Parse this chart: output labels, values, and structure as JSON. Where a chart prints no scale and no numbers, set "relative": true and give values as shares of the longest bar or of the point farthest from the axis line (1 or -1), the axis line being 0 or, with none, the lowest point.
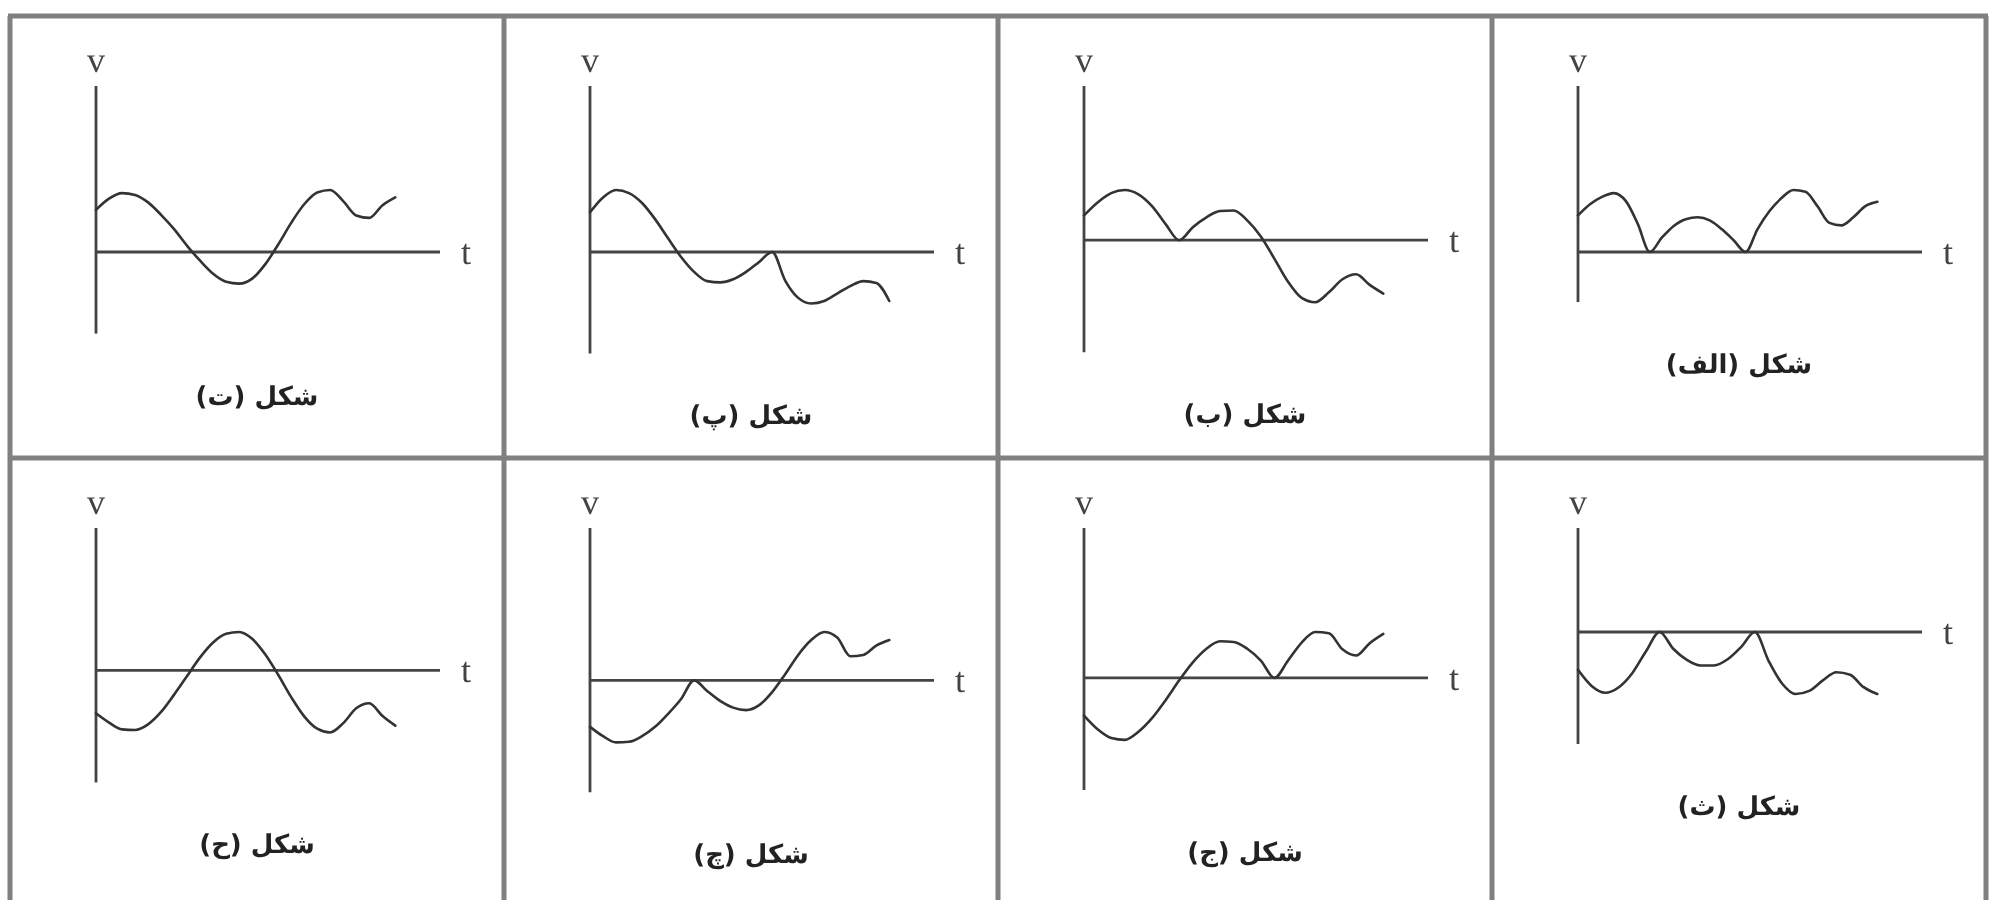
{
  "chart_data": [
    {
      "type": "line",
      "title": "شکل (الف)",
      "xlabel": "t",
      "ylabel": "v",
      "relative": true,
      "color": "#333333",
      "categories": [
        null,
        null,
        null,
        null,
        null,
        null,
        null,
        null,
        null,
        null,
        null,
        null,
        null,
        null,
        null,
        null,
        null,
        null,
        null,
        null,
        null,
        null,
        null,
        null,
        null,
        null
      ],
      "values": [
        0.59,
        0.77,
        0.89,
        0.95,
        0.82,
        0.45,
        0,
        0.23,
        0.42,
        0.53,
        0.56,
        0.51,
        0.37,
        0.19,
        0,
        0.37,
        0.66,
        0.87,
        1.0,
        0.97,
        0.74,
        0.47,
        0.43,
        0.56,
        0.74,
        0.81
      ]
    },
    {
      "type": "line",
      "title": "شکل (ب)",
      "xlabel": "t",
      "ylabel": "v",
      "relative": true,
      "color": "#333333",
      "categories": [
        null,
        null,
        null,
        null,
        null,
        null,
        null,
        null,
        null,
        null,
        null,
        null,
        null,
        null,
        null,
        null,
        null,
        null,
        null,
        null,
        null,
        null,
        null
      ],
      "values": [
        0.4,
        0.61,
        0.76,
        0.81,
        0.74,
        0.55,
        0.26,
        0,
        0.21,
        0.37,
        0.47,
        0.48,
        0.32,
        0.06,
        -0.3,
        -0.67,
        -0.93,
        -1.0,
        -0.84,
        -0.63,
        -0.55,
        -0.72,
        -0.86
      ]
    },
    {
      "type": "line",
      "title": "شکل (پ)",
      "xlabel": "t",
      "ylabel": "v",
      "relative": true,
      "color": "#333333",
      "categories": [
        null,
        null,
        null,
        null,
        null,
        null,
        null,
        null,
        null,
        null,
        null,
        null,
        null,
        null,
        null,
        null,
        null,
        null,
        null,
        null,
        null,
        null,
        null,
        null
      ],
      "values": [
        0.64,
        0.88,
        1.0,
        0.95,
        0.79,
        0.53,
        0.22,
        -0.08,
        -0.32,
        -0.47,
        -0.49,
        -0.44,
        -0.32,
        -0.16,
        0,
        -0.46,
        -0.74,
        -0.83,
        -0.79,
        -0.67,
        -0.55,
        -0.47,
        -0.5,
        -0.79
      ]
    },
    {
      "type": "line",
      "title": "شکل (ت)",
      "xlabel": "t",
      "ylabel": "v",
      "relative": true,
      "color": "#333333",
      "categories": [
        null,
        null,
        null,
        null,
        null,
        null,
        null,
        null,
        null,
        null,
        null,
        null,
        null,
        null,
        null,
        null,
        null,
        null,
        null,
        null,
        null,
        null,
        null,
        null
      ],
      "values": [
        0.68,
        0.86,
        0.95,
        0.92,
        0.8,
        0.6,
        0.37,
        0.1,
        -0.14,
        -0.35,
        -0.48,
        -0.51,
        -0.43,
        -0.2,
        0.12,
        0.47,
        0.77,
        0.96,
        1.0,
        0.82,
        0.59,
        0.55,
        0.75,
        0.88
      ]
    },
    {
      "type": "line",
      "title": "شکل (ث)",
      "xlabel": "t",
      "ylabel": "v",
      "relative": true,
      "color": "#333333",
      "categories": [
        null,
        null,
        null,
        null,
        null,
        null,
        null,
        null,
        null,
        null,
        null,
        null,
        null,
        null,
        null,
        null,
        null,
        null,
        null,
        null,
        null,
        null,
        null
      ],
      "values": [
        -0.61,
        -0.87,
        -0.98,
        -0.89,
        -0.66,
        -0.31,
        0,
        -0.27,
        -0.45,
        -0.54,
        -0.54,
        -0.44,
        -0.24,
        0,
        -0.46,
        -0.83,
        -1.0,
        -0.95,
        -0.78,
        -0.65,
        -0.69,
        -0.89,
        -1.0
      ]
    },
    {
      "type": "line",
      "title": "شکل (ج)",
      "xlabel": "t",
      "ylabel": "v",
      "relative": true,
      "color": "#333333",
      "categories": [
        null,
        null,
        null,
        null,
        null,
        null,
        null,
        null,
        null,
        null,
        null,
        null,
        null,
        null,
        null,
        null,
        null,
        null,
        null,
        null,
        null,
        null,
        null
      ],
      "values": [
        -0.61,
        -0.83,
        -0.97,
        -1.0,
        -0.87,
        -0.65,
        -0.36,
        -0.04,
        0.25,
        0.47,
        0.59,
        0.58,
        0.47,
        0.28,
        0,
        0.28,
        0.57,
        0.74,
        0.72,
        0.46,
        0.36,
        0.56,
        0.71
      ]
    },
    {
      "type": "line",
      "title": "شکل (چ)",
      "xlabel": "t",
      "ylabel": "v",
      "relative": true,
      "color": "#333333",
      "categories": [
        null,
        null,
        null,
        null,
        null,
        null,
        null,
        null,
        null,
        null,
        null,
        null,
        null,
        null,
        null,
        null,
        null,
        null,
        null,
        null,
        null,
        null,
        null,
        null
      ],
      "values": [
        -0.75,
        -0.9,
        -1.0,
        -0.99,
        -0.9,
        -0.75,
        -0.54,
        -0.3,
        0,
        -0.17,
        -0.33,
        -0.44,
        -0.48,
        -0.4,
        -0.19,
        0.1,
        0.41,
        0.65,
        0.78,
        0.69,
        0.39,
        0.41,
        0.56,
        0.65
      ]
    },
    {
      "type": "line",
      "title": "شکل (ح)",
      "xlabel": "t",
      "ylabel": "v",
      "relative": true,
      "color": "#333333",
      "categories": [
        null,
        null,
        null,
        null,
        null,
        null,
        null,
        null,
        null,
        null,
        null,
        null,
        null,
        null,
        null,
        null,
        null,
        null,
        null,
        null,
        null,
        null,
        null,
        null
      ],
      "values": [
        -0.69,
        -0.84,
        -0.95,
        -0.96,
        -0.87,
        -0.67,
        -0.39,
        -0.09,
        0.21,
        0.45,
        0.59,
        0.62,
        0.51,
        0.26,
        -0.07,
        -0.43,
        -0.74,
        -0.94,
        -1.0,
        -0.85,
        -0.61,
        -0.53,
        -0.73,
        -0.89
      ]
    }
  ]
}
